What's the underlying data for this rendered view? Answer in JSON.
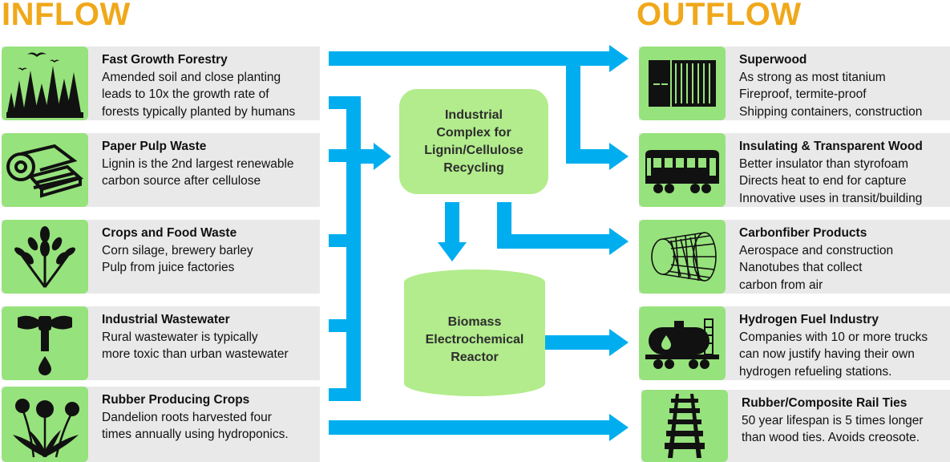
{
  "headings": {
    "inflow": "INFLOW",
    "outflow": "OUTFLOW"
  },
  "inflow": [
    {
      "title": "Fast Growth Forestry",
      "lines": [
        "Amended soil and close planting",
        "leads to 10x the growth rate of",
        "forests typically planted by humans"
      ],
      "icon": "forest-birds-icon"
    },
    {
      "title": "Paper Pulp Waste",
      "lines": [
        "Lignin is the 2nd largest renewable",
        "carbon source after cellulose"
      ],
      "icon": "paper-roll-icon"
    },
    {
      "title": "Crops and Food Waste",
      "lines": [
        "Corn silage, brewery barley",
        "Pulp from juice factories"
      ],
      "icon": "wheat-icon"
    },
    {
      "title": "Industrial Wastewater",
      "lines": [
        "Rural wastewater is typically",
        "more toxic than urban wastewater"
      ],
      "icon": "water-tap-icon"
    },
    {
      "title": "Rubber Producing Crops",
      "lines": [
        "Dandelion roots harvested four",
        "times annually using hydroponics."
      ],
      "icon": "dandelion-icon"
    }
  ],
  "outflow": [
    {
      "title": "Superwood",
      "lines": [
        "As strong as most titanium",
        "Fireproof, termite-proof",
        "Shipping containers, construction"
      ],
      "icon": "shipping-container-icon"
    },
    {
      "title": "Insulating & Transparent Wood",
      "lines": [
        "Better insulator than styrofoam",
        "Directs heat to end for capture",
        "Innovative uses in transit/building"
      ],
      "icon": "train-car-icon"
    },
    {
      "title": "Carbonfiber Products",
      "lines": [
        "Aerospace and construction",
        "Nanotubes that collect",
        "carbon from air"
      ],
      "icon": "nanotube-icon"
    },
    {
      "title": "Hydrogen Fuel Industry",
      "lines": [
        "Companies with 10 or more trucks",
        "can now justify having their own",
        "hydrogen refueling stations."
      ],
      "icon": "tanker-car-icon"
    },
    {
      "title": "Rubber/Composite Rail Ties",
      "lines": [
        "50 year lifespan is 5 times longer",
        "than wood ties. Avoids creosote."
      ],
      "icon": "rail-track-icon"
    }
  ],
  "hubs": {
    "complex": {
      "lines": [
        "Industrial",
        "Complex for",
        "Lignin/Cellulose",
        "Recycling"
      ]
    },
    "reactor": {
      "lines": [
        "Biomass",
        "Electrochemical",
        "Reactor"
      ]
    }
  },
  "colors": {
    "heading": "#f0a81a",
    "arrow": "#00aeef",
    "icon_bg": "#96e27c",
    "hub": "#b2ec8c",
    "card_bg": "#e9e9e9"
  }
}
